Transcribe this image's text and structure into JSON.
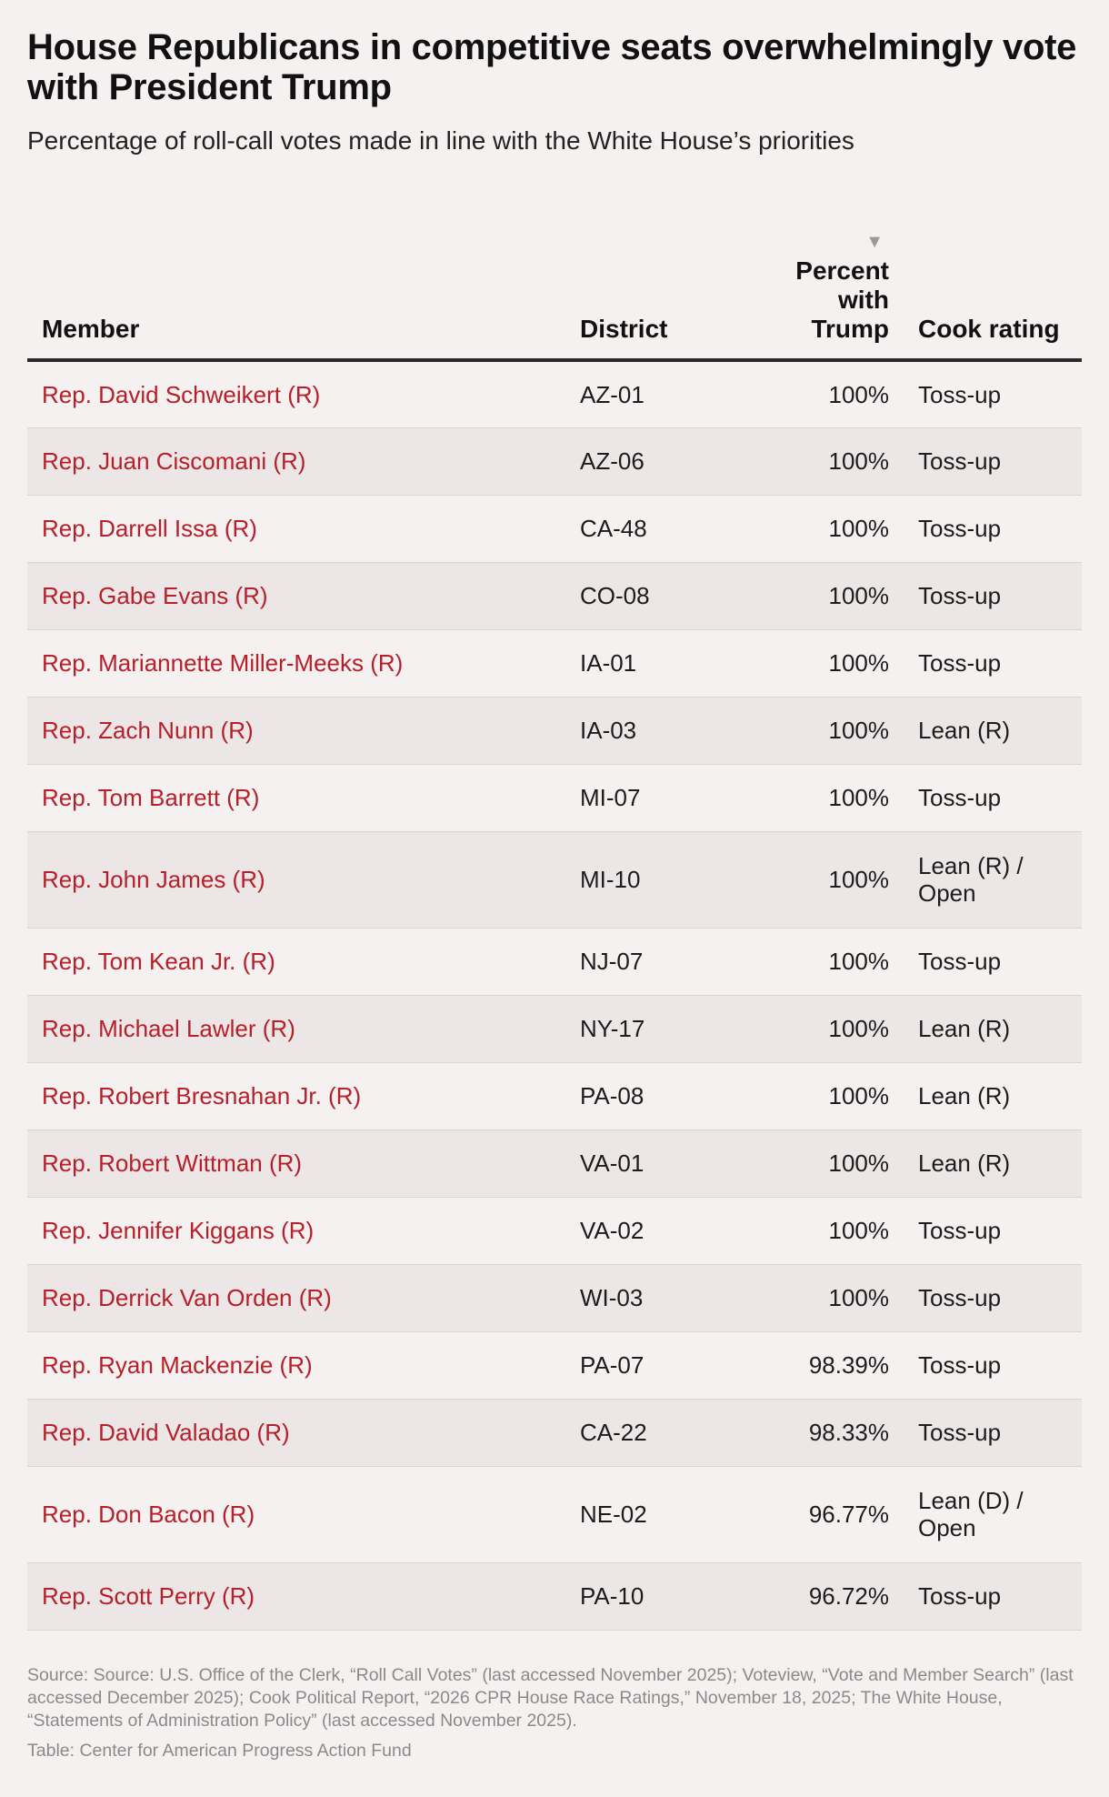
{
  "title": "House Republicans in competitive seats overwhelmingly vote with President Trump",
  "subtitle": "Percentage of roll-call votes made in line with the White House’s priorities",
  "sort_indicator": "▼",
  "chart_data": {
    "type": "table",
    "columns": [
      "Member",
      "District",
      "Percent with Trump",
      "Cook rating"
    ],
    "column_headers": {
      "member": "Member",
      "district": "District",
      "percent": "Percent with Trump",
      "cook": "Cook rating"
    },
    "sorted_by": "Percent with Trump",
    "sort_direction": "descending",
    "rows": [
      {
        "member": "Rep. David Schweikert (R)",
        "district": "AZ-01",
        "percent": "100%",
        "value": 100,
        "cook": "Toss-up"
      },
      {
        "member": "Rep. Juan Ciscomani (R)",
        "district": "AZ-06",
        "percent": "100%",
        "value": 100,
        "cook": "Toss-up"
      },
      {
        "member": "Rep. Darrell Issa (R)",
        "district": "CA-48",
        "percent": "100%",
        "value": 100,
        "cook": "Toss-up"
      },
      {
        "member": "Rep. Gabe Evans (R)",
        "district": "CO-08",
        "percent": "100%",
        "value": 100,
        "cook": "Toss-up"
      },
      {
        "member": "Rep. Mariannette Miller-Meeks (R)",
        "district": "IA-01",
        "percent": "100%",
        "value": 100,
        "cook": "Toss-up"
      },
      {
        "member": "Rep. Zach Nunn (R)",
        "district": "IA-03",
        "percent": "100%",
        "value": 100,
        "cook": "Lean (R)"
      },
      {
        "member": "Rep. Tom Barrett (R)",
        "district": "MI-07",
        "percent": "100%",
        "value": 100,
        "cook": "Toss-up"
      },
      {
        "member": "Rep. John James (R)",
        "district": "MI-10",
        "percent": "100%",
        "value": 100,
        "cook": "Lean (R) / Open"
      },
      {
        "member": "Rep. Tom Kean Jr. (R)",
        "district": "NJ-07",
        "percent": "100%",
        "value": 100,
        "cook": "Toss-up"
      },
      {
        "member": "Rep. Michael Lawler (R)",
        "district": "NY-17",
        "percent": "100%",
        "value": 100,
        "cook": "Lean (R)"
      },
      {
        "member": "Rep. Robert Bresnahan Jr. (R)",
        "district": "PA-08",
        "percent": "100%",
        "value": 100,
        "cook": "Lean (R)"
      },
      {
        "member": "Rep. Robert Wittman (R)",
        "district": "VA-01",
        "percent": "100%",
        "value": 100,
        "cook": "Lean (R)"
      },
      {
        "member": "Rep. Jennifer Kiggans (R)",
        "district": "VA-02",
        "percent": "100%",
        "value": 100,
        "cook": "Toss-up"
      },
      {
        "member": "Rep. Derrick Van Orden (R)",
        "district": "WI-03",
        "percent": "100%",
        "value": 100,
        "cook": "Toss-up"
      },
      {
        "member": "Rep. Ryan Mackenzie (R)",
        "district": "PA-07",
        "percent": "98.39%",
        "value": 98.39,
        "cook": "Toss-up"
      },
      {
        "member": "Rep. David Valadao (R)",
        "district": "CA-22",
        "percent": "98.33%",
        "value": 98.33,
        "cook": "Toss-up"
      },
      {
        "member": "Rep. Don Bacon (R)",
        "district": "NE-02",
        "percent": "96.77%",
        "value": 96.77,
        "cook": "Lean (D) / Open"
      },
      {
        "member": "Rep. Scott Perry (R)",
        "district": "PA-10",
        "percent": "96.72%",
        "value": 96.72,
        "cook": "Toss-up"
      }
    ]
  },
  "colors": {
    "member_link": "#b5202a",
    "stripe": "#ece7e6",
    "background": "#f5f1f0"
  },
  "footer": {
    "source": "Source: Source: U.S. Office of the Clerk, “Roll Call Votes” (last accessed November 2025); Voteview, “Vote and Member Search” (last accessed December 2025); Cook Political Report, “2026 CPR House Race Ratings,” November 18, 2025; The White House, “Statements of Administration Policy” (last accessed November 2025).",
    "credit": "Table: Center for American Progress Action Fund"
  }
}
